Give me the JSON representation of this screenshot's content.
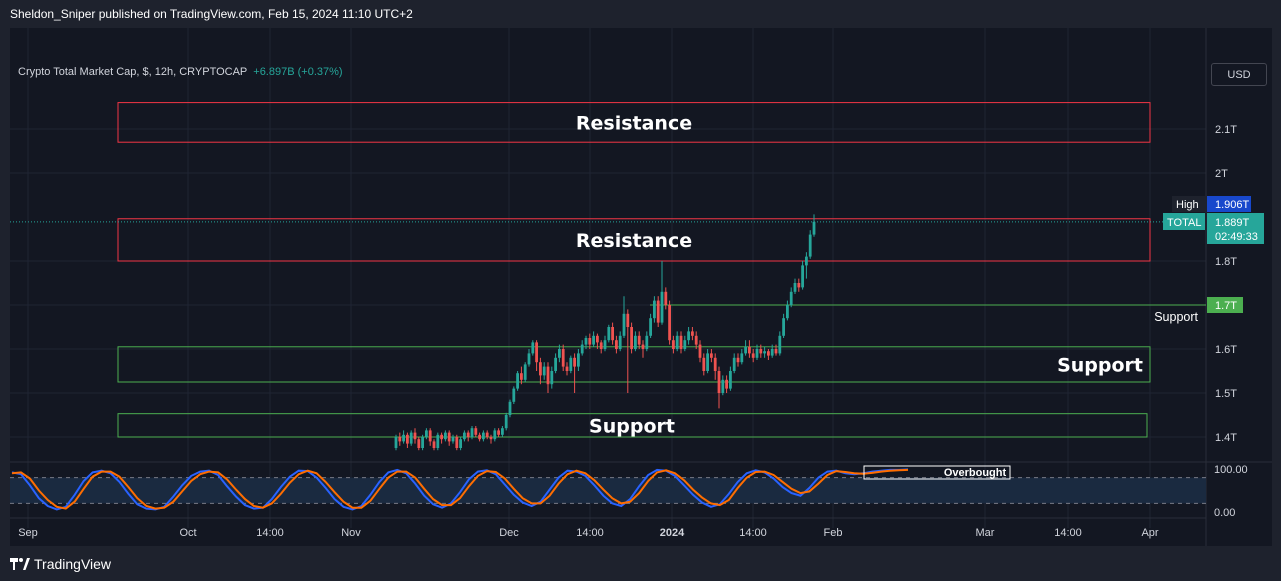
{
  "header": {
    "publisher": "Sheldon_Sniper published on TradingView.com, Feb 15, 2024 11:10 UTC+2"
  },
  "legend": {
    "symbol": "Crypto Total Market Cap, $, 12h, CRYPTOCAP",
    "change": "+6.897B (+0.37%)"
  },
  "currency_button": "USD",
  "footer": {
    "brand": "TradingView"
  },
  "colors": {
    "up": "#26a69a",
    "down": "#ef5350",
    "resistance": "#f23645",
    "support": "#4caf50",
    "stoch_k": "#2962ff",
    "stoch_d": "#ff6d00"
  },
  "chart_data": {
    "type": "candlestick",
    "ylim": [
      1.36,
      2.2
    ],
    "y_ticks": [
      "2.1T",
      "2T",
      "1.8T",
      "1.7T",
      "1.6T",
      "1.5T",
      "1.4T"
    ],
    "y_tick_values": [
      2.1,
      2.0,
      1.8,
      1.7,
      1.6,
      1.5,
      1.4
    ],
    "x_ticks": [
      "Sep",
      "Oct",
      "14:00",
      "Nov",
      "Dec",
      "14:00",
      "2024",
      "14:00",
      "Feb",
      "Mar",
      "14:00",
      "Apr"
    ],
    "price_labels": {
      "high": {
        "label": "High",
        "value": 1.906,
        "text": "1.906T"
      },
      "last": {
        "label": "TOTAL",
        "value": 1.889,
        "text": "1.889T",
        "countdown": "02:49:33"
      },
      "support_line": {
        "value": 1.7,
        "text": "1.7T"
      }
    },
    "zones": [
      {
        "type": "resistance",
        "label": "Resistance",
        "from": 2.07,
        "to": 2.16
      },
      {
        "type": "resistance",
        "label": "Resistance",
        "from": 1.8,
        "to": 1.896
      },
      {
        "type": "support",
        "label": "Support",
        "from": 1.525,
        "to": 1.605
      },
      {
        "type": "support",
        "label": "Support",
        "from": 1.4,
        "to": 1.453
      }
    ],
    "support_line": {
      "label": "Support",
      "value": 1.7
    },
    "candles": [
      [
        1.375,
        1.4,
        1.37,
        1.405
      ],
      [
        1.4,
        1.39,
        1.38,
        1.41
      ],
      [
        1.39,
        1.405,
        1.385,
        1.415
      ],
      [
        1.405,
        1.385,
        1.375,
        1.41
      ],
      [
        1.385,
        1.41,
        1.38,
        1.415
      ],
      [
        1.41,
        1.395,
        1.385,
        1.42
      ],
      [
        1.395,
        1.375,
        1.37,
        1.4
      ],
      [
        1.375,
        1.4,
        1.37,
        1.405
      ],
      [
        1.4,
        1.415,
        1.395,
        1.42
      ],
      [
        1.415,
        1.39,
        1.38,
        1.42
      ],
      [
        1.39,
        1.375,
        1.37,
        1.395
      ],
      [
        1.375,
        1.405,
        1.37,
        1.41
      ],
      [
        1.405,
        1.395,
        1.385,
        1.41
      ],
      [
        1.395,
        1.41,
        1.39,
        1.415
      ],
      [
        1.41,
        1.39,
        1.38,
        1.415
      ],
      [
        1.39,
        1.4,
        1.385,
        1.405
      ],
      [
        1.4,
        1.375,
        1.37,
        1.405
      ],
      [
        1.375,
        1.395,
        1.37,
        1.4
      ],
      [
        1.395,
        1.41,
        1.39,
        1.415
      ],
      [
        1.41,
        1.4,
        1.39,
        1.415
      ],
      [
        1.4,
        1.42,
        1.395,
        1.425
      ],
      [
        1.42,
        1.405,
        1.4,
        1.425
      ],
      [
        1.405,
        1.395,
        1.39,
        1.41
      ],
      [
        1.395,
        1.41,
        1.39,
        1.415
      ],
      [
        1.41,
        1.4,
        1.395,
        1.415
      ],
      [
        1.4,
        1.395,
        1.385,
        1.405
      ],
      [
        1.395,
        1.415,
        1.39,
        1.42
      ],
      [
        1.415,
        1.405,
        1.4,
        1.42
      ],
      [
        1.405,
        1.42,
        1.4,
        1.425
      ],
      [
        1.42,
        1.45,
        1.415,
        1.455
      ],
      [
        1.45,
        1.48,
        1.445,
        1.485
      ],
      [
        1.48,
        1.51,
        1.475,
        1.515
      ],
      [
        1.51,
        1.545,
        1.505,
        1.55
      ],
      [
        1.545,
        1.53,
        1.52,
        1.56
      ],
      [
        1.53,
        1.565,
        1.525,
        1.57
      ],
      [
        1.565,
        1.59,
        1.56,
        1.6
      ],
      [
        1.59,
        1.615,
        1.585,
        1.62
      ],
      [
        1.615,
        1.57,
        1.55,
        1.62
      ],
      [
        1.57,
        1.54,
        1.52,
        1.58
      ],
      [
        1.54,
        1.56,
        1.53,
        1.57
      ],
      [
        1.56,
        1.52,
        1.5,
        1.57
      ],
      [
        1.52,
        1.55,
        1.51,
        1.56
      ],
      [
        1.55,
        1.58,
        1.545,
        1.59
      ],
      [
        1.58,
        1.6,
        1.57,
        1.61
      ],
      [
        1.6,
        1.56,
        1.55,
        1.61
      ],
      [
        1.56,
        1.55,
        1.54,
        1.57
      ],
      [
        1.55,
        1.58,
        1.545,
        1.585
      ],
      [
        1.58,
        1.56,
        1.5,
        1.59
      ],
      [
        1.56,
        1.59,
        1.55,
        1.6
      ],
      [
        1.59,
        1.61,
        1.585,
        1.62
      ],
      [
        1.61,
        1.625,
        1.6,
        1.63
      ],
      [
        1.625,
        1.61,
        1.6,
        1.635
      ],
      [
        1.61,
        1.63,
        1.605,
        1.64
      ],
      [
        1.63,
        1.615,
        1.6,
        1.635
      ],
      [
        1.615,
        1.6,
        1.59,
        1.62
      ],
      [
        1.6,
        1.62,
        1.595,
        1.63
      ],
      [
        1.62,
        1.65,
        1.615,
        1.655
      ],
      [
        1.65,
        1.62,
        1.61,
        1.66
      ],
      [
        1.62,
        1.6,
        1.59,
        1.63
      ],
      [
        1.6,
        1.63,
        1.595,
        1.64
      ],
      [
        1.63,
        1.68,
        1.625,
        1.72
      ],
      [
        1.68,
        1.65,
        1.5,
        1.69
      ],
      [
        1.65,
        1.6,
        1.59,
        1.66
      ],
      [
        1.6,
        1.63,
        1.595,
        1.64
      ],
      [
        1.63,
        1.61,
        1.6,
        1.64
      ],
      [
        1.61,
        1.6,
        1.58,
        1.62
      ],
      [
        1.6,
        1.63,
        1.595,
        1.64
      ],
      [
        1.63,
        1.67,
        1.625,
        1.68
      ],
      [
        1.67,
        1.71,
        1.66,
        1.72
      ],
      [
        1.71,
        1.66,
        1.65,
        1.72
      ],
      [
        1.66,
        1.73,
        1.655,
        1.8
      ],
      [
        1.73,
        1.7,
        1.69,
        1.74
      ],
      [
        1.7,
        1.62,
        1.61,
        1.71
      ],
      [
        1.62,
        1.6,
        1.59,
        1.63
      ],
      [
        1.6,
        1.63,
        1.595,
        1.64
      ],
      [
        1.63,
        1.6,
        1.59,
        1.64
      ],
      [
        1.6,
        1.62,
        1.595,
        1.63
      ],
      [
        1.62,
        1.64,
        1.61,
        1.65
      ],
      [
        1.64,
        1.63,
        1.62,
        1.65
      ],
      [
        1.63,
        1.61,
        1.6,
        1.64
      ],
      [
        1.61,
        1.58,
        1.57,
        1.62
      ],
      [
        1.58,
        1.55,
        1.54,
        1.59
      ],
      [
        1.55,
        1.59,
        1.545,
        1.6
      ],
      [
        1.59,
        1.58,
        1.57,
        1.6
      ],
      [
        1.58,
        1.55,
        1.53,
        1.59
      ],
      [
        1.55,
        1.5,
        1.465,
        1.56
      ],
      [
        1.5,
        1.53,
        1.495,
        1.54
      ],
      [
        1.53,
        1.51,
        1.5,
        1.54
      ],
      [
        1.51,
        1.55,
        1.505,
        1.56
      ],
      [
        1.55,
        1.58,
        1.545,
        1.59
      ],
      [
        1.58,
        1.57,
        1.56,
        1.59
      ],
      [
        1.57,
        1.59,
        1.565,
        1.6
      ],
      [
        1.59,
        1.605,
        1.585,
        1.62
      ],
      [
        1.605,
        1.59,
        1.58,
        1.62
      ],
      [
        1.59,
        1.58,
        1.57,
        1.6
      ],
      [
        1.58,
        1.6,
        1.575,
        1.61
      ],
      [
        1.6,
        1.59,
        1.58,
        1.61
      ],
      [
        1.59,
        1.595,
        1.58,
        1.605
      ],
      [
        1.595,
        1.585,
        1.575,
        1.6
      ],
      [
        1.585,
        1.6,
        1.58,
        1.61
      ],
      [
        1.6,
        1.59,
        1.585,
        1.61
      ],
      [
        1.59,
        1.63,
        1.585,
        1.64
      ],
      [
        1.63,
        1.67,
        1.625,
        1.68
      ],
      [
        1.67,
        1.7,
        1.665,
        1.71
      ],
      [
        1.7,
        1.73,
        1.695,
        1.74
      ],
      [
        1.73,
        1.75,
        1.725,
        1.76
      ],
      [
        1.75,
        1.74,
        1.73,
        1.76
      ],
      [
        1.74,
        1.79,
        1.735,
        1.8
      ],
      [
        1.79,
        1.81,
        1.76,
        1.82
      ],
      [
        1.81,
        1.86,
        1.805,
        1.87
      ],
      [
        1.86,
        1.889,
        1.855,
        1.906
      ]
    ],
    "stochastic": {
      "ylim": [
        0,
        100
      ],
      "y_ticks": [
        "100.00",
        "0.00"
      ],
      "y_tick_values": [
        100,
        0
      ],
      "bands": [
        80,
        20
      ],
      "annotation": "Overbought",
      "k": [
        92,
        88,
        62,
        32,
        14,
        6,
        12,
        40,
        72,
        92,
        96,
        90,
        70,
        42,
        18,
        8,
        6,
        12,
        36,
        62,
        84,
        94,
        96,
        86,
        60,
        36,
        16,
        8,
        10,
        30,
        58,
        82,
        96,
        95,
        80,
        56,
        30,
        12,
        6,
        14,
        40,
        70,
        92,
        98,
        90,
        66,
        38,
        18,
        10,
        20,
        46,
        76,
        94,
        97,
        88,
        64,
        40,
        22,
        14,
        24,
        52,
        80,
        96,
        94,
        84,
        62,
        38,
        20,
        14,
        30,
        60,
        86,
        98,
        96,
        84,
        62,
        40,
        22,
        12,
        18,
        42,
        70,
        90,
        97,
        92,
        78,
        58,
        44,
        38,
        56,
        80,
        94,
        96,
        90,
        88,
        90,
        94,
        96,
        98,
        98,
        99
      ],
      "d": [
        90,
        92,
        78,
        50,
        28,
        12,
        8,
        24,
        54,
        82,
        94,
        94,
        82,
        58,
        32,
        14,
        8,
        10,
        24,
        48,
        72,
        88,
        94,
        92,
        76,
        52,
        30,
        14,
        10,
        20,
        42,
        68,
        88,
        96,
        90,
        70,
        46,
        24,
        10,
        10,
        26,
        54,
        80,
        94,
        94,
        80,
        54,
        30,
        16,
        16,
        32,
        60,
        84,
        95,
        93,
        78,
        54,
        32,
        20,
        20,
        38,
        66,
        88,
        96,
        90,
        74,
        52,
        32,
        20,
        24,
        44,
        72,
        92,
        97,
        90,
        74,
        52,
        34,
        20,
        16,
        28,
        56,
        80,
        93,
        94,
        86,
        70,
        54,
        44,
        48,
        66,
        86,
        95,
        93,
        90,
        89,
        91,
        94,
        96,
        97,
        98
      ]
    }
  }
}
